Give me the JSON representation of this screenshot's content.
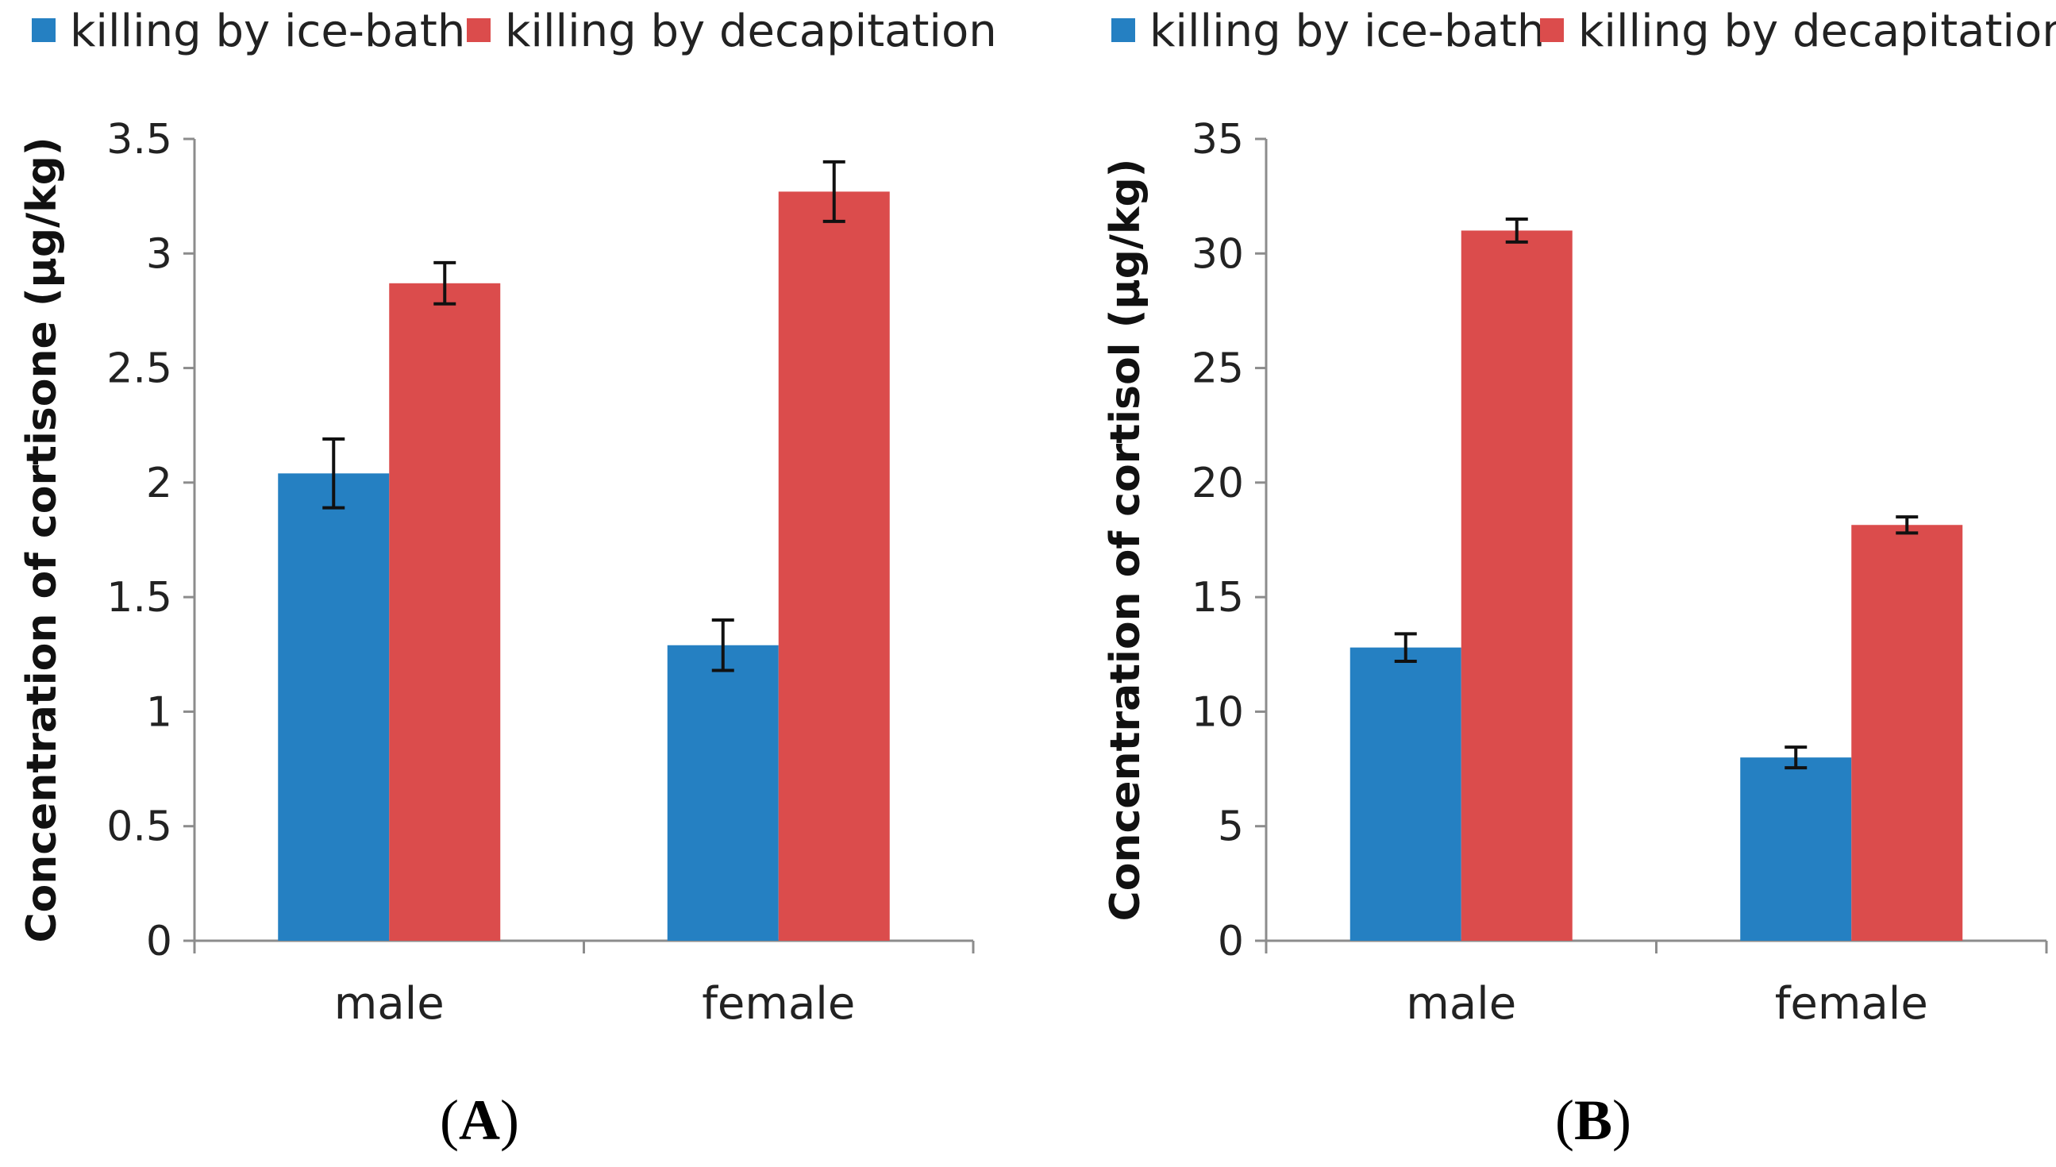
{
  "chart_data": [
    {
      "type": "bar",
      "panel": "A",
      "categories": [
        "male",
        "female"
      ],
      "series": [
        {
          "name": "killing by ice-bath",
          "color": "#2580C2",
          "values": [
            2.04,
            1.29
          ],
          "errors": [
            0.15,
            0.11
          ]
        },
        {
          "name": "killing by decapitation",
          "color": "#DB4C4C",
          "values": [
            2.87,
            3.27
          ],
          "errors": [
            0.09,
            0.13
          ]
        }
      ],
      "ylabel": "Concentration of cortisone (μg/kg)",
      "ylim": [
        0,
        3.5
      ],
      "yticks": [
        "0",
        "0.5",
        "1",
        "1.5",
        "2",
        "2.5",
        "3",
        "3.5"
      ],
      "grid": false,
      "legend": "top-left"
    },
    {
      "type": "bar",
      "panel": "B",
      "categories": [
        "male",
        "female"
      ],
      "series": [
        {
          "name": "killing by ice-bath",
          "color": "#2580C2",
          "values": [
            12.8,
            8.0
          ],
          "errors": [
            0.6,
            0.45
          ]
        },
        {
          "name": "killing by decapitation",
          "color": "#DB4C4C",
          "values": [
            31.0,
            18.15
          ],
          "errors": [
            0.5,
            0.35
          ]
        }
      ],
      "ylabel": "Concentration of cortisol (μg/kg)",
      "ylim": [
        0,
        35
      ],
      "yticks": [
        "0",
        "5",
        "10",
        "15",
        "20",
        "25",
        "30",
        "35"
      ],
      "grid": false,
      "legend": "top-left"
    }
  ]
}
